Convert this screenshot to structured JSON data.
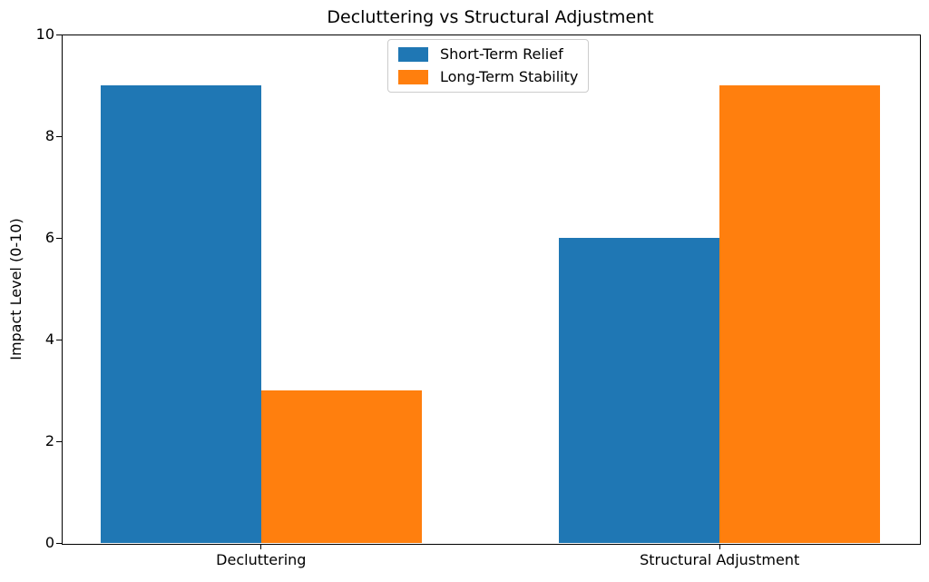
{
  "chart_data": {
    "type": "bar",
    "title": "Decluttering vs Structural Adjustment",
    "xlabel": "",
    "ylabel": "Impact Level (0-10)",
    "categories": [
      "Decluttering",
      "Structural Adjustment"
    ],
    "series": [
      {
        "name": "Short-Term Relief",
        "color": "#1f77b4",
        "values": [
          9,
          6
        ]
      },
      {
        "name": "Long-Term Stability",
        "color": "#ff7f0e",
        "values": [
          3,
          9
        ]
      }
    ],
    "ylim": [
      0,
      10
    ],
    "yticks": [
      0,
      2,
      4,
      6,
      8,
      10
    ],
    "bar_width": 0.35,
    "grid": false,
    "legend_position": "upper center",
    "axis_color": "#000000",
    "legend_border_color": "#cccccc",
    "background_color": "#ffffff"
  }
}
